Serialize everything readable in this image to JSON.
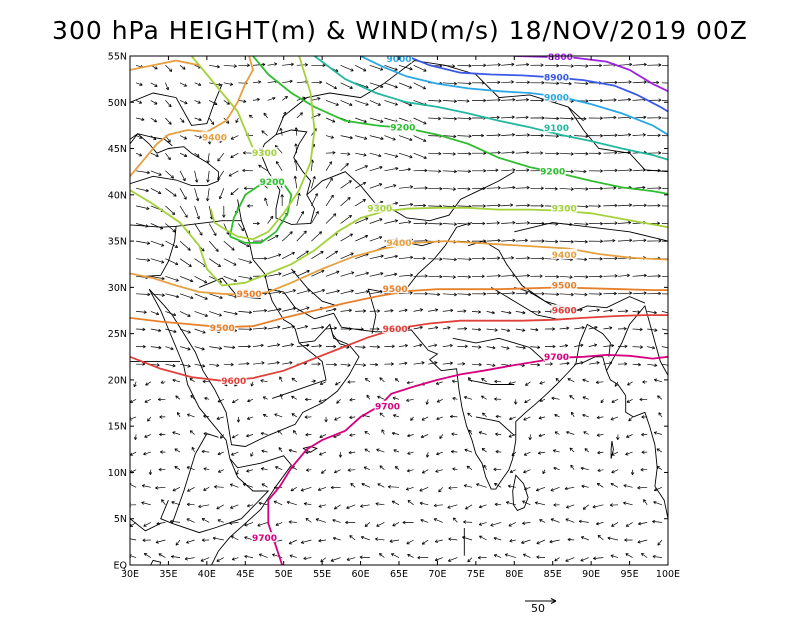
{
  "title": "300 hPa HEIGHT(m) & WIND(m/s) 18/NOV/2019 00Z",
  "axes": {
    "x_ticks": [
      "30E",
      "35E",
      "40E",
      "45E",
      "50E",
      "55E",
      "60E",
      "65E",
      "70E",
      "75E",
      "80E",
      "85E",
      "90E",
      "95E",
      "100E"
    ],
    "y_ticks": [
      "EQ",
      "5N",
      "10N",
      "15N",
      "20N",
      "25N",
      "30N",
      "35N",
      "40N",
      "45N",
      "50N",
      "55N"
    ],
    "lon_range": [
      30,
      100
    ],
    "lat_range": [
      0,
      55
    ]
  },
  "reference_vector": {
    "label": "50"
  },
  "contours": [
    {
      "value": "9700",
      "color": "#d6007f",
      "labels": [
        [
          47.5,
          2.9
        ],
        [
          63.5,
          17.1
        ],
        [
          85.5,
          22.5
        ]
      ]
    },
    {
      "value": "9600",
      "color": "#e0403a",
      "labels": [
        [
          43.5,
          19.9
        ],
        [
          64.5,
          25.5
        ],
        [
          86.5,
          27.5
        ]
      ]
    },
    {
      "value": "9500",
      "color": "#e6802a",
      "labels": [
        [
          42,
          25.6
        ],
        [
          45.5,
          29.3
        ],
        [
          64.5,
          29.8
        ],
        [
          86.5,
          30.2
        ]
      ]
    },
    {
      "value": "9400",
      "color": "#e6a040",
      "labels": [
        [
          41,
          46.2
        ],
        [
          65,
          34.8
        ],
        [
          86.5,
          33.5
        ]
      ]
    },
    {
      "value": "9300",
      "color": "#a5d23a",
      "labels": [
        [
          47.5,
          44.5
        ],
        [
          62.5,
          38.5
        ],
        [
          86.5,
          38.5
        ]
      ]
    },
    {
      "value": "9200",
      "color": "#2fbe2f",
      "labels": [
        [
          48.5,
          41.4
        ],
        [
          65.5,
          47.3
        ],
        [
          85,
          42.5
        ]
      ]
    },
    {
      "value": "9100",
      "color": "#22b8a0",
      "labels": [
        [
          85.5,
          47.2
        ]
      ]
    },
    {
      "value": "9000",
      "color": "#2aa8e6",
      "labels": [
        [
          65,
          54.7
        ],
        [
          85.5,
          50.5
        ]
      ]
    },
    {
      "value": "8900",
      "color": "#3a5ae6",
      "labels": [
        [
          85.5,
          52.7
        ]
      ]
    },
    {
      "value": "8800",
      "color": "#a020e0",
      "labels": [
        [
          86,
          54.9
        ]
      ]
    }
  ]
}
